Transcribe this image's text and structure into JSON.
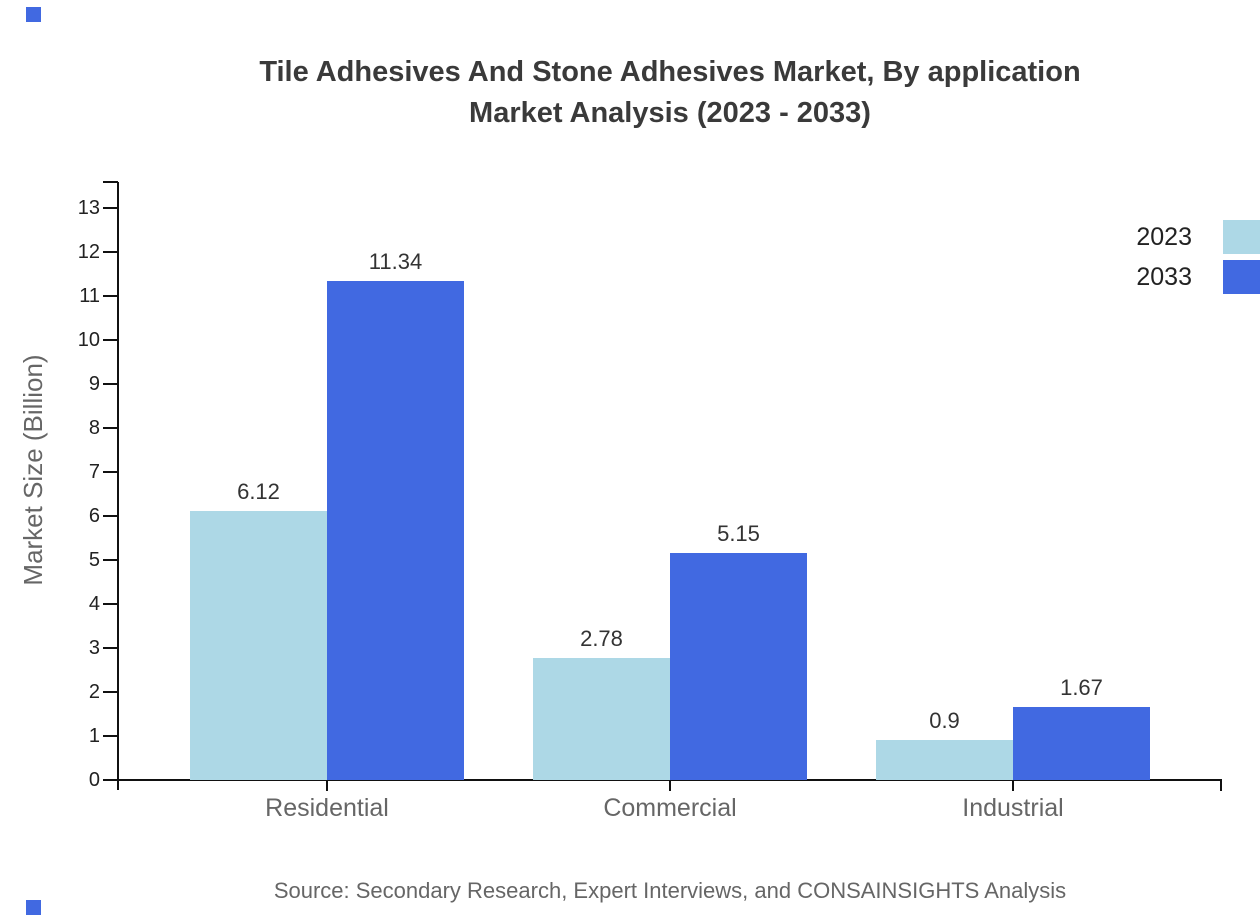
{
  "page": {
    "background": "#ffffff"
  },
  "decor": {
    "corner_square_color": "#4169E1",
    "top_left_square": "decorative blue square",
    "bottom_left_square": "decorative blue square"
  },
  "title": {
    "line1": "Tile Adhesives And Stone Adhesives Market, By application",
    "line2": "Market Analysis (2023 - 2033)"
  },
  "chart_data": {
    "type": "bar",
    "title": "Tile Adhesives And Stone Adhesives Market, By application Market Analysis (2023 - 2033)",
    "categories": [
      "Residential",
      "Commercial",
      "Industrial"
    ],
    "series": [
      {
        "name": "2023",
        "color": "#ADD8E6",
        "values": [
          6.12,
          2.78,
          0.9
        ],
        "value_labels": [
          "6.12",
          "2.78",
          "0.9"
        ]
      },
      {
        "name": "2033",
        "color": "#4169E1",
        "values": [
          11.34,
          5.15,
          1.67
        ],
        "value_labels": [
          "11.34",
          "5.15",
          "1.67"
        ]
      }
    ],
    "xlabel": "",
    "ylabel": "Market Size (Billion)",
    "ylim": [
      0,
      13
    ],
    "yticks": [
      0,
      1,
      2,
      3,
      4,
      5,
      6,
      7,
      8,
      9,
      10,
      11,
      12,
      13
    ],
    "grid": false,
    "legend_position": "top-right"
  },
  "legend": {
    "entries": [
      {
        "label": "2023",
        "color": "#ADD8E6"
      },
      {
        "label": "2033",
        "color": "#4169E1"
      }
    ]
  },
  "source": {
    "text": "Source: Secondary Research, Expert Interviews, and CONSAINSIGHTS Analysis"
  }
}
